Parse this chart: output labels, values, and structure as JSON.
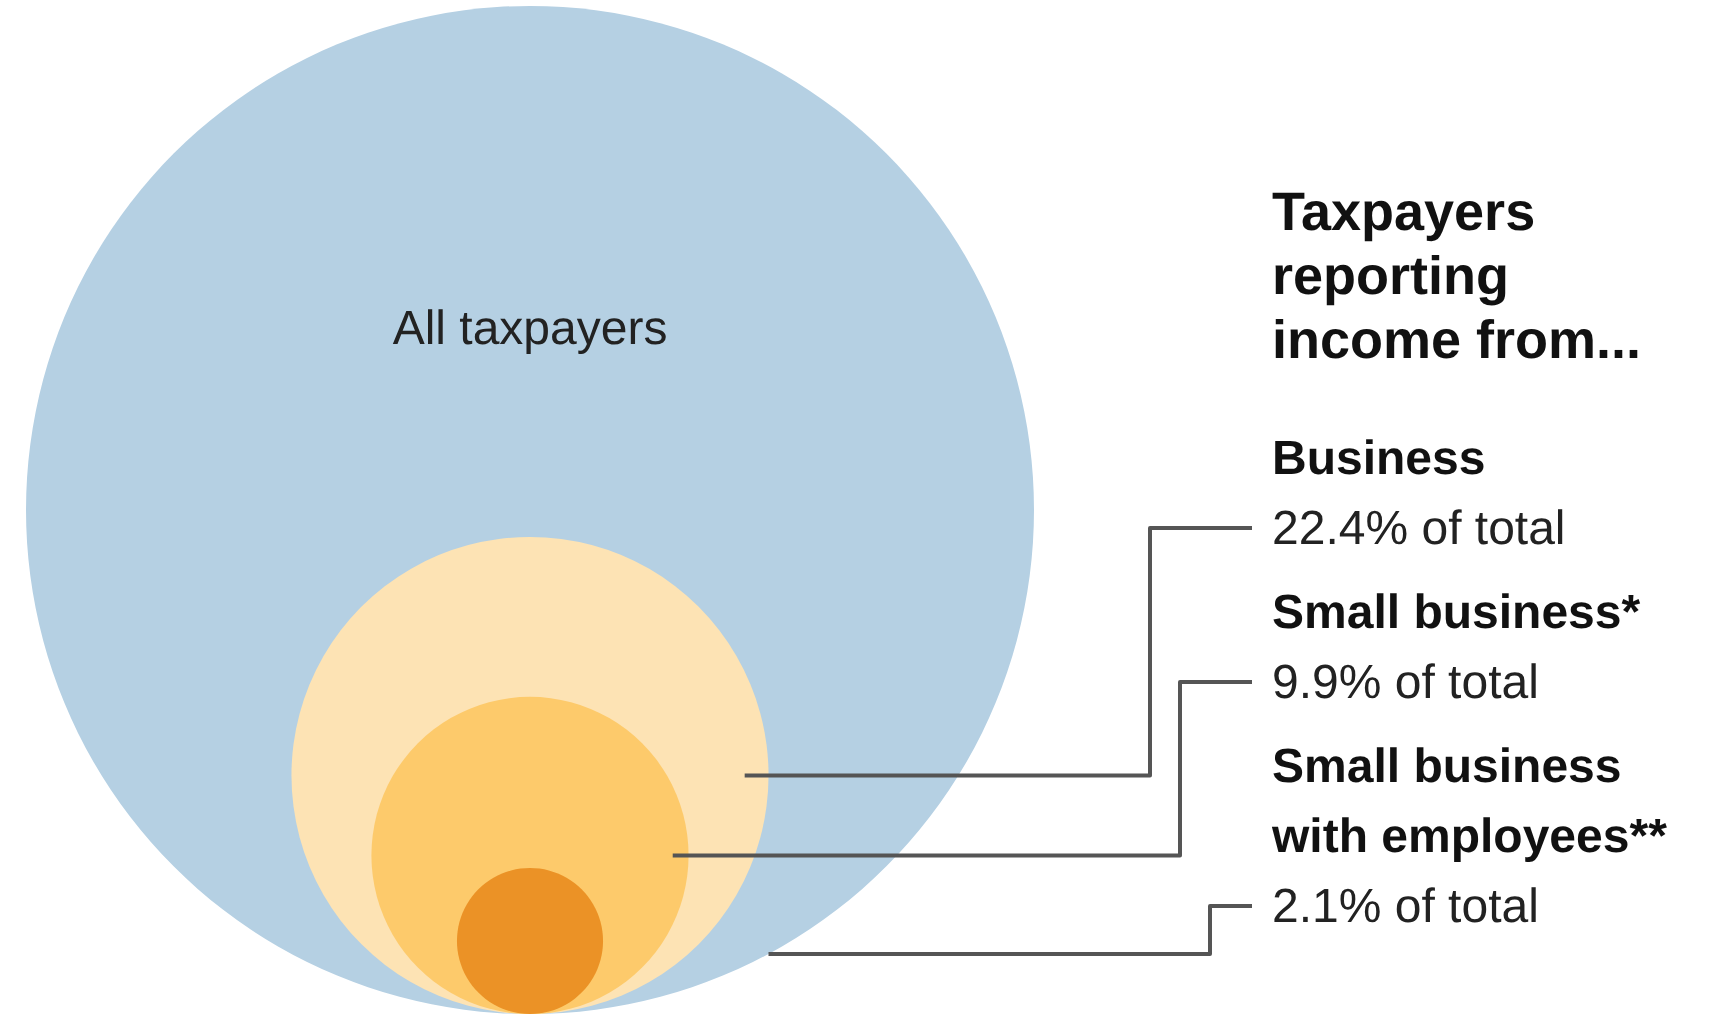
{
  "chart_data": {
    "type": "other",
    "title": "Taxpayers reporting income from...",
    "categories": [
      "All taxpayers",
      "Business",
      "Small business*",
      "Small business with employees**"
    ],
    "values": [
      null,
      22.4,
      9.9,
      2.1
    ],
    "colors": [
      "#b5d0e3",
      "#fde3b4",
      "#fdca6b",
      "#eb9226"
    ],
    "value_labels": [
      null,
      "22.4% of total",
      "9.9% of total",
      "2.1% of total"
    ]
  }
}
